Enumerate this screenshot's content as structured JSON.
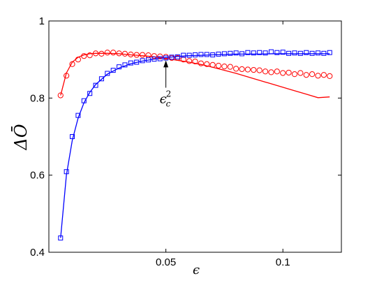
{
  "chart_data": {
    "type": "line",
    "xlabel": "ϵ",
    "ylabel": "ΔŌ",
    "xlim": [
      0.0,
      0.125
    ],
    "ylim": [
      0.4,
      1.0
    ],
    "x_ticks": [
      0.05,
      0.1
    ],
    "x_tick_labels": [
      "0.05",
      "0.1"
    ],
    "y_ticks": [
      0.4,
      0.6,
      0.8,
      1.0
    ],
    "y_tick_labels": [
      "0.4",
      "0.6",
      "0.8",
      "1"
    ],
    "grid": false,
    "annotation": {
      "text": "ϵ",
      "subscript": "c",
      "superscript": "2",
      "point": [
        0.05,
        0.905
      ],
      "text_position": [
        0.05,
        0.845
      ]
    },
    "series": [
      {
        "color": "#ff0000",
        "marker": "circle",
        "points_x": [
          0.005,
          0.0075,
          0.01,
          0.0125,
          0.015,
          0.0175,
          0.02,
          0.0225,
          0.025,
          0.0275,
          0.03,
          0.0325,
          0.035,
          0.0375,
          0.04,
          0.0425,
          0.045,
          0.0475,
          0.05,
          0.0525,
          0.055,
          0.0575,
          0.06,
          0.0625,
          0.065,
          0.0675,
          0.07,
          0.0725,
          0.075,
          0.0775,
          0.08,
          0.0825,
          0.085,
          0.0875,
          0.09,
          0.0925,
          0.095,
          0.0975,
          0.1,
          0.1025,
          0.105,
          0.1075,
          0.11,
          0.1125,
          0.115,
          0.1175,
          0.12
        ],
        "points_y": [
          0.807,
          0.858,
          0.888,
          0.9,
          0.909,
          0.911,
          0.916,
          0.915,
          0.918,
          0.918,
          0.916,
          0.915,
          0.913,
          0.912,
          0.912,
          0.911,
          0.909,
          0.908,
          0.907,
          0.904,
          0.904,
          0.9,
          0.896,
          0.895,
          0.89,
          0.888,
          0.886,
          0.884,
          0.882,
          0.881,
          0.876,
          0.875,
          0.874,
          0.873,
          0.872,
          0.869,
          0.867,
          0.869,
          0.865,
          0.866,
          0.862,
          0.865,
          0.86,
          0.862,
          0.858,
          0.86,
          0.857
        ],
        "line_x": [
          0.005,
          0.0075,
          0.01,
          0.0125,
          0.015,
          0.0175,
          0.02,
          0.025,
          0.03,
          0.035,
          0.04,
          0.045,
          0.05,
          0.055,
          0.06,
          0.065,
          0.07,
          0.075,
          0.08,
          0.085,
          0.09,
          0.095,
          0.1,
          0.105,
          0.11,
          0.115,
          0.12
        ],
        "line_y": [
          0.807,
          0.865,
          0.893,
          0.906,
          0.912,
          0.915,
          0.916,
          0.916,
          0.915,
          0.912,
          0.91,
          0.907,
          0.903,
          0.898,
          0.893,
          0.887,
          0.88,
          0.872,
          0.864,
          0.855,
          0.846,
          0.837,
          0.828,
          0.819,
          0.81,
          0.801,
          0.803
        ]
      },
      {
        "color": "#0000ff",
        "marker": "square",
        "points_x": [
          0.005,
          0.0075,
          0.01,
          0.0125,
          0.015,
          0.0175,
          0.02,
          0.0225,
          0.025,
          0.0275,
          0.03,
          0.0325,
          0.035,
          0.0375,
          0.04,
          0.0425,
          0.045,
          0.0475,
          0.05,
          0.0525,
          0.055,
          0.0575,
          0.06,
          0.0625,
          0.065,
          0.0675,
          0.07,
          0.0725,
          0.075,
          0.0775,
          0.08,
          0.0825,
          0.085,
          0.0875,
          0.09,
          0.0925,
          0.095,
          0.0975,
          0.1,
          0.1025,
          0.105,
          0.1075,
          0.11,
          0.1125,
          0.115,
          0.1175,
          0.12
        ],
        "points_y": [
          0.437,
          0.609,
          0.7,
          0.755,
          0.793,
          0.812,
          0.833,
          0.85,
          0.864,
          0.872,
          0.881,
          0.886,
          0.891,
          0.893,
          0.897,
          0.899,
          0.901,
          0.902,
          0.904,
          0.906,
          0.907,
          0.911,
          0.911,
          0.912,
          0.913,
          0.913,
          0.912,
          0.914,
          0.915,
          0.916,
          0.917,
          0.915,
          0.918,
          0.917,
          0.918,
          0.917,
          0.92,
          0.918,
          0.919,
          0.916,
          0.917,
          0.916,
          0.918,
          0.916,
          0.917,
          0.916,
          0.918
        ],
        "line_x": [
          0.005,
          0.0075,
          0.01,
          0.0125,
          0.015,
          0.0175,
          0.02,
          0.025,
          0.03,
          0.035,
          0.04,
          0.045,
          0.05,
          0.055,
          0.06,
          0.065,
          0.07,
          0.075,
          0.08,
          0.085,
          0.09,
          0.095,
          0.1,
          0.105,
          0.11,
          0.115,
          0.12
        ],
        "line_y": [
          0.437,
          0.6,
          0.69,
          0.748,
          0.788,
          0.815,
          0.835,
          0.862,
          0.878,
          0.889,
          0.896,
          0.901,
          0.905,
          0.908,
          0.91,
          0.911,
          0.912,
          0.913,
          0.914,
          0.914,
          0.914,
          0.915,
          0.915,
          0.915,
          0.915,
          0.915,
          0.915
        ]
      }
    ]
  }
}
